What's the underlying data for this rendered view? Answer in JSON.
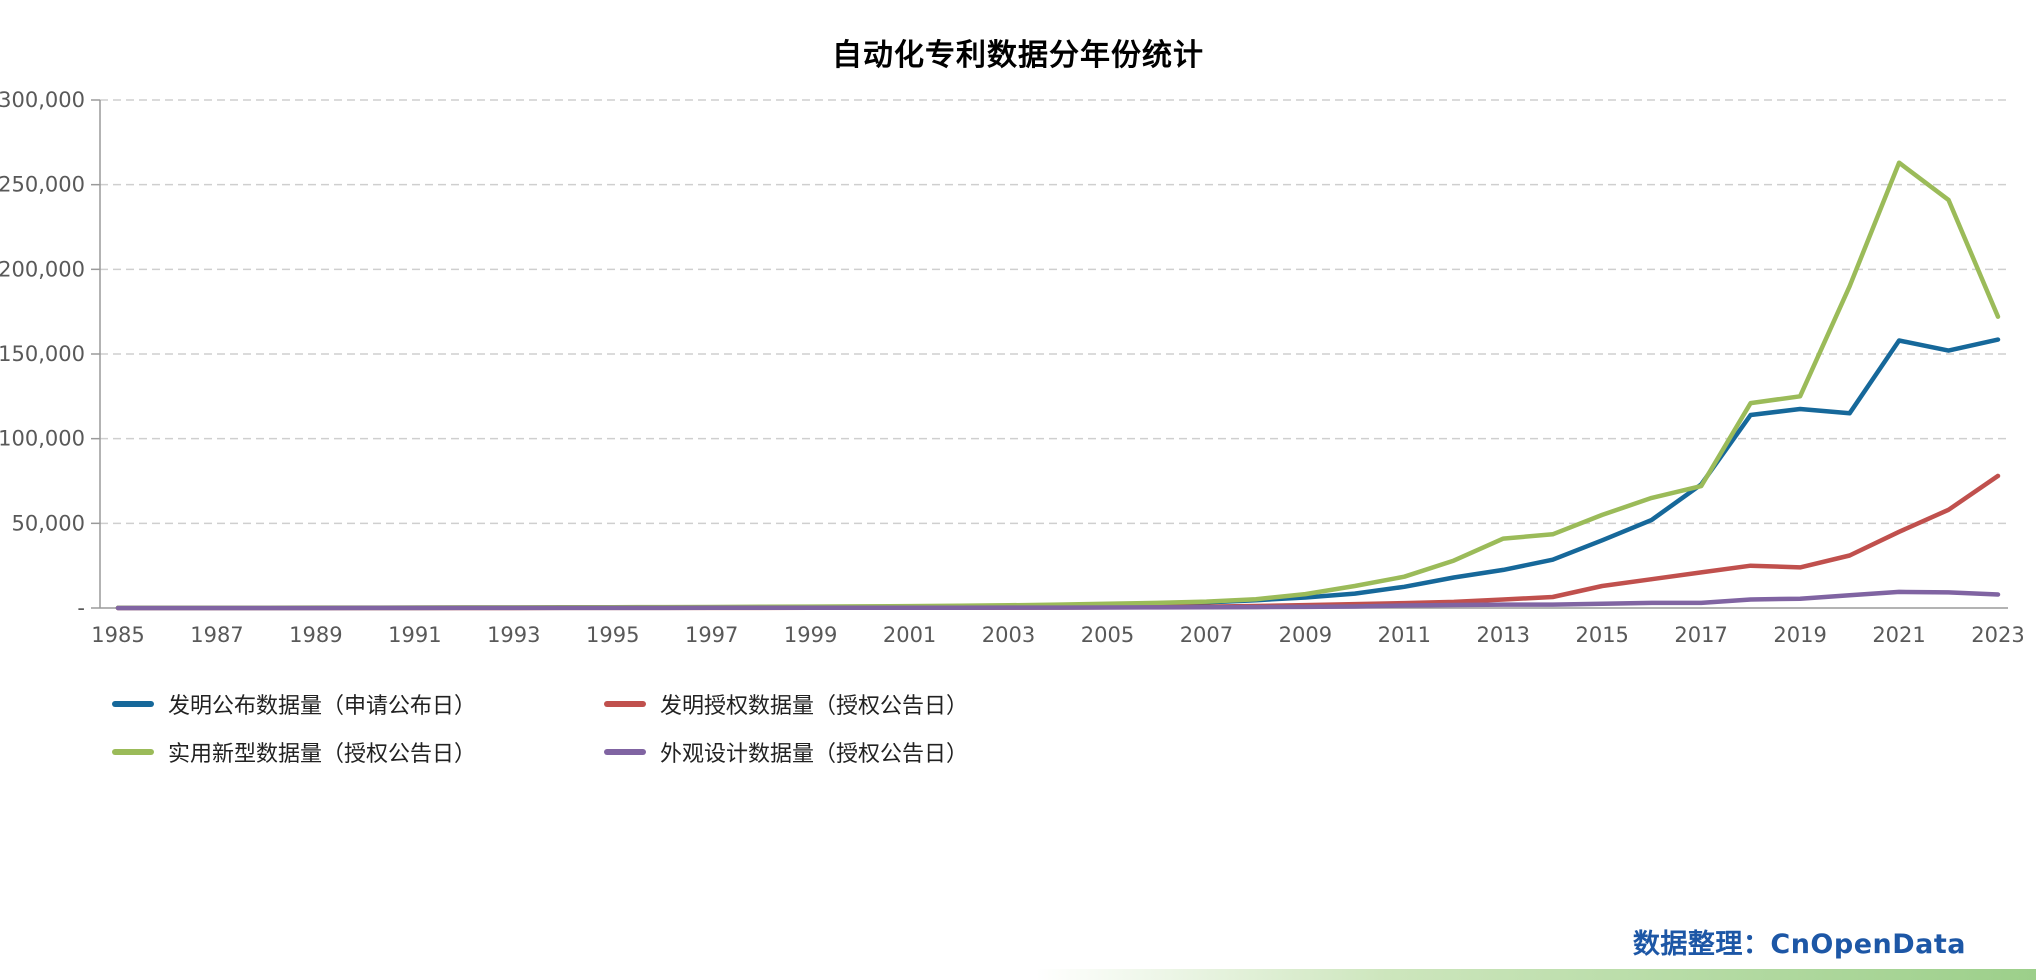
{
  "title": "自动化专利数据分年份统计",
  "credit": "数据整理：CnOpenData",
  "credit_color": "#1d57a6",
  "chart_data": {
    "type": "line",
    "title": "自动化专利数据分年份统计",
    "xlabel": "",
    "ylabel": "",
    "ylim": [
      0,
      300000
    ],
    "grid": "horizontal-dashed",
    "legend_position": "bottom-left",
    "x": [
      1985,
      1986,
      1987,
      1988,
      1989,
      1990,
      1991,
      1992,
      1993,
      1994,
      1995,
      1996,
      1997,
      1998,
      1999,
      2000,
      2001,
      2002,
      2003,
      2004,
      2005,
      2006,
      2007,
      2008,
      2009,
      2010,
      2011,
      2012,
      2013,
      2014,
      2015,
      2016,
      2017,
      2018,
      2019,
      2020,
      2021,
      2022,
      2023
    ],
    "x_tick_labels": [
      "1985",
      "1987",
      "1989",
      "1991",
      "1993",
      "1995",
      "1997",
      "1999",
      "2001",
      "2003",
      "2005",
      "2007",
      "2009",
      "2011",
      "2013",
      "2015",
      "2017",
      "2019",
      "2021",
      "2023"
    ],
    "y_ticks": [
      0,
      50000,
      100000,
      150000,
      200000,
      250000,
      300000
    ],
    "y_tick_labels": [
      "-",
      "50,000",
      "100,000",
      "150,000",
      "200,000",
      "250,000",
      "300,000"
    ],
    "series": [
      {
        "name": "发明公布数据量（申请公布日）",
        "color": "#16689a",
        "values": [
          31,
          36,
          42,
          50,
          60,
          70,
          80,
          95,
          110,
          130,
          150,
          175,
          200,
          230,
          270,
          320,
          420,
          600,
          900,
          1300,
          1900,
          2600,
          3300,
          4600,
          6200,
          8500,
          12500,
          18000,
          22500,
          28500,
          40000,
          52000,
          73000,
          114000,
          117500,
          115000,
          158000,
          152000,
          158500
        ]
      },
      {
        "name": "发明授权数据量（授权公告日）",
        "color": "#c0504d",
        "values": [
          5,
          6,
          8,
          10,
          12,
          15,
          18,
          22,
          27,
          33,
          40,
          50,
          60,
          75,
          90,
          110,
          140,
          180,
          240,
          320,
          430,
          580,
          800,
          1200,
          1700,
          2300,
          2900,
          3600,
          5000,
          6500,
          13000,
          17000,
          21000,
          25000,
          24000,
          31000,
          45000,
          58000,
          78000
        ]
      },
      {
        "name": "实用新型数据量（授权公告日）",
        "color": "#9bbb59",
        "values": [
          120,
          140,
          165,
          190,
          220,
          255,
          290,
          330,
          380,
          430,
          490,
          550,
          620,
          700,
          800,
          950,
          1100,
          1300,
          1600,
          2000,
          2500,
          3000,
          3800,
          5200,
          8200,
          13000,
          18500,
          28000,
          41000,
          43500,
          55000,
          65000,
          72000,
          121000,
          125000,
          190000,
          263000,
          241000,
          172000
        ]
      },
      {
        "name": "外观设计数据量（授权公告日）",
        "color": "#8064a2",
        "values": [
          15,
          18,
          21,
          25,
          29,
          34,
          39,
          45,
          52,
          60,
          70,
          80,
          92,
          106,
          122,
          140,
          160,
          185,
          215,
          250,
          300,
          360,
          430,
          520,
          650,
          900,
          1500,
          1800,
          2000,
          2000,
          2500,
          3000,
          3000,
          5000,
          5500,
          7500,
          9500,
          9200,
          8000
        ]
      }
    ]
  }
}
